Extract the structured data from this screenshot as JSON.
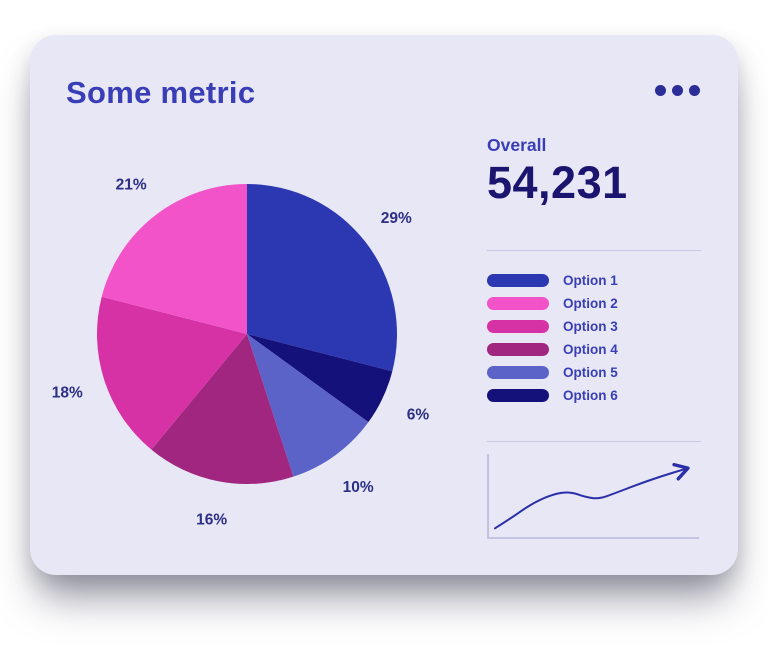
{
  "card": {
    "title": "Some metric",
    "background_color": "#e7e7f6",
    "accent_text_color": "#3a3eb6",
    "menu_icon": "ellipsis-menu"
  },
  "overall": {
    "label": "Overall",
    "value": "54,231"
  },
  "chart_data": [
    {
      "type": "pie",
      "title": "Some metric",
      "labels": [
        "Option 1",
        "Option 2",
        "Option 3",
        "Option 4",
        "Option 5",
        "Option 6"
      ],
      "values": [
        29,
        21,
        18,
        16,
        10,
        6
      ],
      "unit": "%",
      "display_labels": [
        "29%",
        "21%",
        "18%",
        "16%",
        "10%",
        "6%"
      ],
      "colors": [
        "#2c37b2",
        "#f253c9",
        "#d631a5",
        "#a1267f",
        "#5b63c8",
        "#15117a"
      ],
      "clockwise_order_from_top": [
        0,
        5,
        4,
        3,
        2,
        1
      ],
      "legend_position": "right",
      "data_label_position": "outside"
    },
    {
      "type": "line",
      "name": "trend-sparkline",
      "points_normalized": [
        [
          0,
          0.04
        ],
        [
          0.09,
          0.2
        ],
        [
          0.19,
          0.4
        ],
        [
          0.3,
          0.54
        ],
        [
          0.39,
          0.58
        ],
        [
          0.47,
          0.5
        ],
        [
          0.54,
          0.47
        ],
        [
          0.62,
          0.55
        ],
        [
          0.73,
          0.67
        ],
        [
          0.86,
          0.8
        ],
        [
          1,
          0.92
        ]
      ],
      "line_color": "#2b2fa8",
      "arrow_end": true,
      "axes": "left-bottom"
    }
  ]
}
